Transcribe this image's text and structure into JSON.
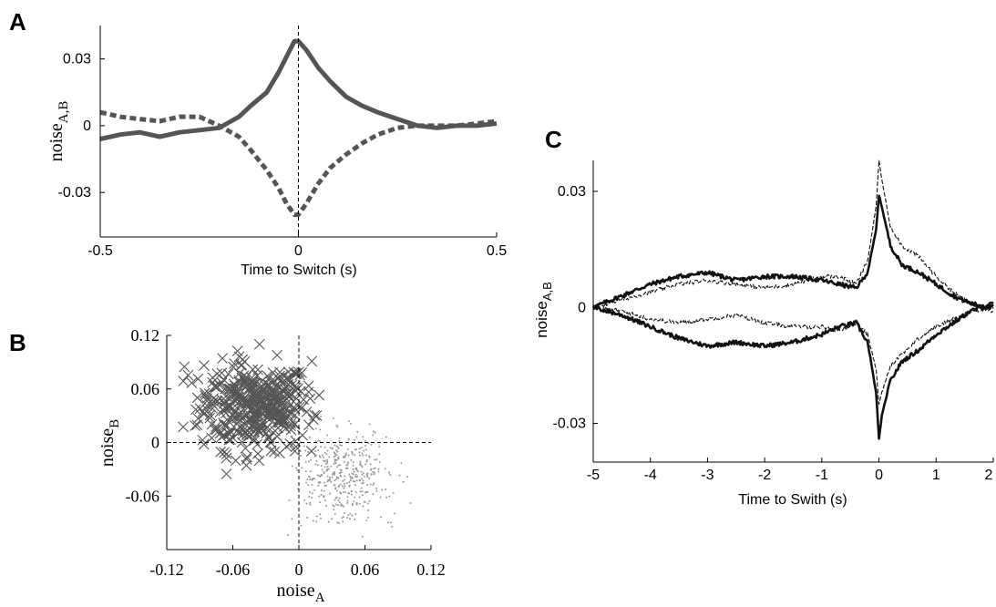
{
  "chart_data": [
    {
      "panel": "A",
      "type": "line",
      "ylabel": "noise",
      "ylabel_sub": "A,B",
      "xlabel": "Time to Switch (s)",
      "xlim": [
        -0.5,
        0.5
      ],
      "ylim": [
        -0.05,
        0.045
      ],
      "xticks": [
        "-0.5",
        "0",
        "0.5"
      ],
      "yticks": [
        "0.03",
        "0",
        "-0.03"
      ],
      "vline": 0,
      "colors": {
        "series": "#555555"
      },
      "series": [
        {
          "style": "solid",
          "x": [
            -0.5,
            -0.45,
            -0.4,
            -0.35,
            -0.3,
            -0.25,
            -0.2,
            -0.15,
            -0.12,
            -0.08,
            -0.05,
            -0.03,
            -0.01,
            0.0,
            0.02,
            0.05,
            0.08,
            0.12,
            0.16,
            0.2,
            0.25,
            0.3,
            0.35,
            0.4,
            0.45,
            0.5
          ],
          "y": [
            -0.006,
            -0.004,
            -0.003,
            -0.005,
            -0.003,
            -0.002,
            -0.001,
            0.004,
            0.009,
            0.015,
            0.024,
            0.031,
            0.038,
            0.038,
            0.034,
            0.026,
            0.02,
            0.013,
            0.009,
            0.006,
            0.003,
            0.0,
            -0.001,
            0.0,
            0.0,
            0.001
          ]
        },
        {
          "style": "dashed",
          "x": [
            -0.5,
            -0.45,
            -0.4,
            -0.35,
            -0.3,
            -0.25,
            -0.2,
            -0.15,
            -0.12,
            -0.08,
            -0.05,
            -0.03,
            -0.01,
            0.0,
            0.02,
            0.05,
            0.08,
            0.12,
            0.16,
            0.2,
            0.25,
            0.3,
            0.35,
            0.4,
            0.45,
            0.5
          ],
          "y": [
            0.006,
            0.004,
            0.003,
            0.002,
            0.004,
            0.004,
            0.0,
            -0.005,
            -0.011,
            -0.02,
            -0.028,
            -0.035,
            -0.04,
            -0.04,
            -0.035,
            -0.026,
            -0.019,
            -0.013,
            -0.008,
            -0.004,
            -0.001,
            0.0,
            0.0,
            0.0,
            0.001,
            0.002
          ]
        }
      ]
    },
    {
      "panel": "B",
      "type": "scatter",
      "xlabel": "noise",
      "xlabel_sub": "A",
      "ylabel": "noise",
      "ylabel_sub": "B",
      "xlim": [
        -0.12,
        0.12
      ],
      "ylim": [
        -0.12,
        0.12
      ],
      "xticks": [
        "-0.12",
        "-0.06",
        "0",
        "0.06",
        "0.12"
      ],
      "yticks": [
        "0.12",
        "0.06",
        "0",
        "-0.06"
      ],
      "colors": {
        "cross": "#555555",
        "dot": "#999999"
      },
      "clusters": [
        {
          "marker": "x",
          "center": [
            -0.04,
            0.04
          ],
          "spread": [
            0.025,
            0.025
          ],
          "n": 420
        },
        {
          "marker": "dot",
          "center": [
            0.04,
            -0.04
          ],
          "spread": [
            0.022,
            0.025
          ],
          "n": 420
        }
      ]
    },
    {
      "panel": "C",
      "type": "line",
      "ylabel": "noise",
      "ylabel_sub": "A,B",
      "xlabel": "Time to Swith (s)",
      "xlim": [
        -5,
        2
      ],
      "ylim": [
        -0.04,
        0.038
      ],
      "xticks": [
        "-5",
        "-4",
        "-3",
        "-2",
        "-1",
        "0",
        "1",
        "2"
      ],
      "yticks": [
        "0.03",
        "0",
        "-0.03"
      ],
      "colors": {
        "series": "#111111"
      },
      "series": [
        {
          "style": "thick",
          "x": [
            -5,
            -4.5,
            -4,
            -3.5,
            -3,
            -2.5,
            -2,
            -1.5,
            -1,
            -0.7,
            -0.4,
            -0.2,
            -0.05,
            0.0,
            0.05,
            0.2,
            0.4,
            0.7,
            1.0,
            1.3,
            1.6,
            2.0
          ],
          "y": [
            0.0,
            0.003,
            0.006,
            0.008,
            0.009,
            0.007,
            0.008,
            0.008,
            0.007,
            0.006,
            0.005,
            0.009,
            0.02,
            0.029,
            0.026,
            0.016,
            0.011,
            0.009,
            0.006,
            0.003,
            0.001,
            0.0
          ]
        },
        {
          "style": "thick",
          "x": [
            -5,
            -4.5,
            -4,
            -3.5,
            -3,
            -2.5,
            -2,
            -1.5,
            -1,
            -0.7,
            -0.4,
            -0.2,
            -0.05,
            0.0,
            0.05,
            0.2,
            0.4,
            0.7,
            1.0,
            1.3,
            1.6,
            2.0
          ],
          "y": [
            0.0,
            -0.002,
            -0.005,
            -0.008,
            -0.01,
            -0.009,
            -0.01,
            -0.009,
            -0.007,
            -0.005,
            -0.004,
            -0.009,
            -0.022,
            -0.034,
            -0.028,
            -0.019,
            -0.014,
            -0.011,
            -0.007,
            -0.004,
            -0.001,
            0.001
          ]
        },
        {
          "style": "thin-dash",
          "x": [
            -5,
            -4.5,
            -4,
            -3.5,
            -3,
            -2.5,
            -2,
            -1.5,
            -1,
            -0.7,
            -0.4,
            -0.2,
            -0.05,
            0.0,
            0.05,
            0.2,
            0.4,
            0.7,
            1.0,
            1.3,
            1.6,
            2.0
          ],
          "y": [
            0.0,
            0.002,
            0.004,
            0.006,
            0.007,
            0.006,
            0.005,
            0.006,
            0.008,
            0.008,
            0.006,
            0.012,
            0.026,
            0.038,
            0.033,
            0.021,
            0.016,
            0.013,
            0.008,
            0.004,
            0.001,
            -0.001
          ]
        },
        {
          "style": "thin-dash",
          "x": [
            -5,
            -4.5,
            -4,
            -3.5,
            -3,
            -2.5,
            -2,
            -1.5,
            -1,
            -0.7,
            -0.4,
            -0.2,
            -0.05,
            0.0,
            0.05,
            0.2,
            0.4,
            0.7,
            1.0,
            1.3,
            1.6,
            2.0
          ],
          "y": [
            0.0,
            -0.001,
            -0.003,
            -0.004,
            -0.003,
            -0.002,
            -0.004,
            -0.005,
            -0.005,
            -0.006,
            -0.004,
            -0.007,
            -0.016,
            -0.025,
            -0.022,
            -0.015,
            -0.012,
            -0.008,
            -0.005,
            -0.003,
            -0.001,
            0.0
          ]
        }
      ]
    }
  ],
  "panel_letters": {
    "a": "A",
    "b": "B",
    "c": "C"
  }
}
